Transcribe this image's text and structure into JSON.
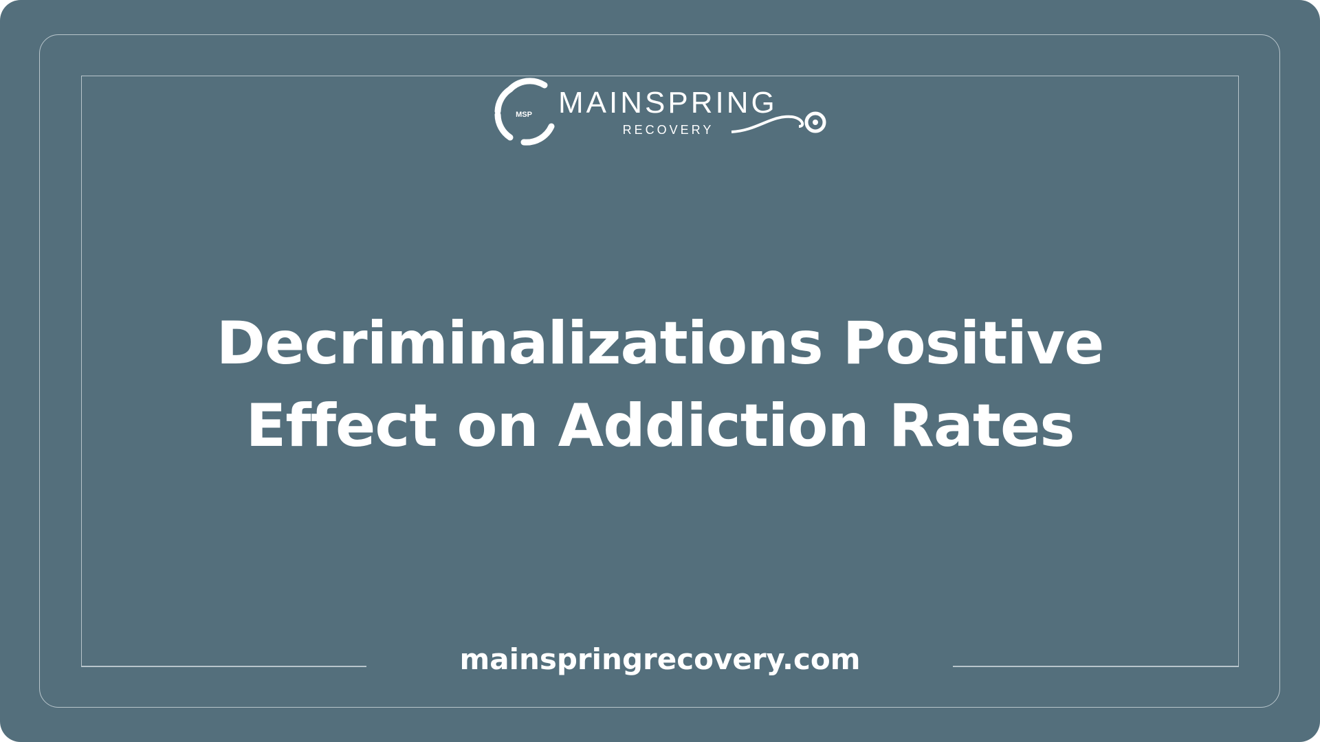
{
  "brand": {
    "name": "MAINSPRING",
    "sub": "RECOVERY",
    "monogram": "MSP"
  },
  "title": {
    "line1": "Decriminalizations Positive",
    "line2": "Effect on Addiction Rates"
  },
  "footer": {
    "url": "mainspringrecovery.com"
  },
  "colors": {
    "background": "#546f7c",
    "border": "#b9c6cc",
    "text": "#ffffff"
  }
}
